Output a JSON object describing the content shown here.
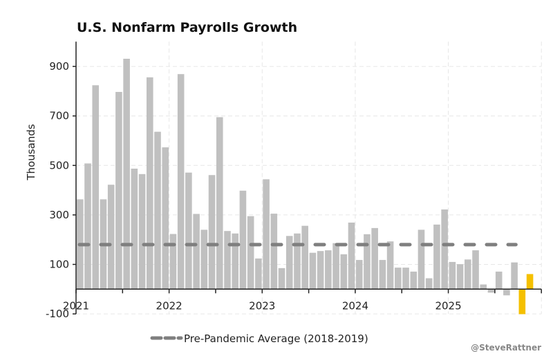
{
  "chart_data": {
    "type": "bar",
    "title": "U.S. Nonfarm Payrolls Growth",
    "xlabel": "",
    "ylabel": "Thousands",
    "ylim": [
      -100,
      1000
    ],
    "yticks": [
      -100,
      100,
      300,
      500,
      700,
      900
    ],
    "xticks": [
      "2021",
      "2022",
      "2023",
      "2024",
      "2025"
    ],
    "xrange": [
      "2021-01",
      "2026-01"
    ],
    "grid": true,
    "start_month": "2021-01",
    "months": [
      "2021-01",
      "2021-02",
      "2021-03",
      "2021-04",
      "2021-05",
      "2021-06",
      "2021-07",
      "2021-08",
      "2021-09",
      "2021-10",
      "2021-11",
      "2021-12",
      "2022-01",
      "2022-02",
      "2022-03",
      "2022-04",
      "2022-05",
      "2022-06",
      "2022-07",
      "2022-08",
      "2022-09",
      "2022-10",
      "2022-11",
      "2022-12",
      "2023-01",
      "2023-02",
      "2023-03",
      "2023-04",
      "2023-05",
      "2023-06",
      "2023-07",
      "2023-08",
      "2023-09",
      "2023-10",
      "2023-11",
      "2023-12",
      "2024-01",
      "2024-02",
      "2024-03",
      "2024-04",
      "2024-05",
      "2024-06",
      "2024-07",
      "2024-08",
      "2024-09",
      "2024-10",
      "2024-11",
      "2024-12",
      "2025-01",
      "2025-02",
      "2025-03",
      "2025-04",
      "2025-05",
      "2025-06",
      "2025-07",
      "2025-08",
      "2025-09",
      "2025-10",
      "2025-11"
    ],
    "values": [
      363,
      508,
      824,
      363,
      422,
      797,
      931,
      487,
      465,
      856,
      636,
      573,
      223,
      869,
      471,
      304,
      240,
      461,
      695,
      235,
      225,
      398,
      295,
      124,
      444,
      305,
      85,
      215,
      225,
      256,
      147,
      154,
      157,
      186,
      141,
      269,
      118,
      222,
      247,
      118,
      193,
      87,
      87,
      71,
      240,
      44,
      261,
      322,
      110,
      101,
      120,
      157,
      19,
      -14,
      71,
      -25,
      108,
      -101,
      61
    ],
    "highlight_months": [
      "2025-10",
      "2025-11"
    ],
    "reference_line": {
      "name": "Pre-Pandemic Average (2018-2019)",
      "value": 180,
      "from": "2021-01",
      "to": "2025-09"
    },
    "legend_position": "bottom-center",
    "colors": {
      "bar": "#c0c0c0",
      "highlight": "#f5c000",
      "reference": "#7f7f7f",
      "grid": "#e6e6e6"
    }
  },
  "credit": "@SteveRattner"
}
